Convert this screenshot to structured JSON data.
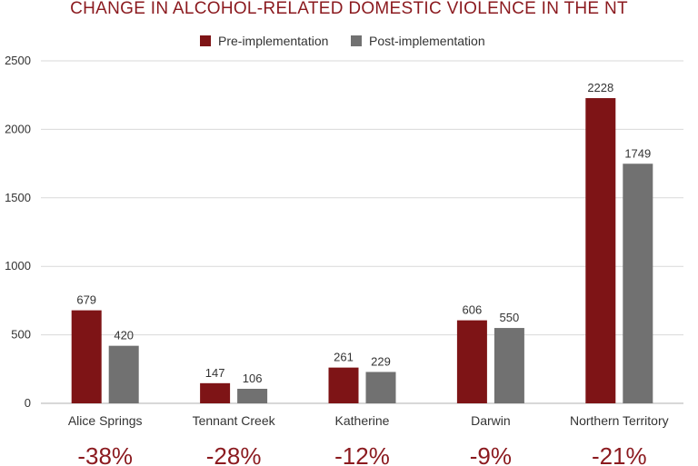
{
  "chart_data": {
    "type": "bar",
    "title": "CHANGE IN ALCOHOL-RELATED DOMESTIC VIOLENCE IN THE NT",
    "categories": [
      "Alice Springs",
      "Tennant Creek",
      "Katherine",
      "Darwin",
      "Northern Territory"
    ],
    "series": [
      {
        "name": "Pre-implementation",
        "color": "#7e1416",
        "values": [
          679,
          147,
          261,
          606,
          2228
        ]
      },
      {
        "name": "Post-implementation",
        "color": "#717171",
        "values": [
          420,
          106,
          229,
          550,
          1749
        ]
      }
    ],
    "changes": [
      "-38%",
      "-28%",
      "-12%",
      "-9%",
      "-21%"
    ],
    "yticks": [
      "0",
      "500",
      "1000",
      "1500",
      "2000",
      "2500"
    ],
    "ylim": [
      0,
      2500
    ],
    "grid": true,
    "legend": "top-center",
    "xlabel": "",
    "ylabel": ""
  }
}
